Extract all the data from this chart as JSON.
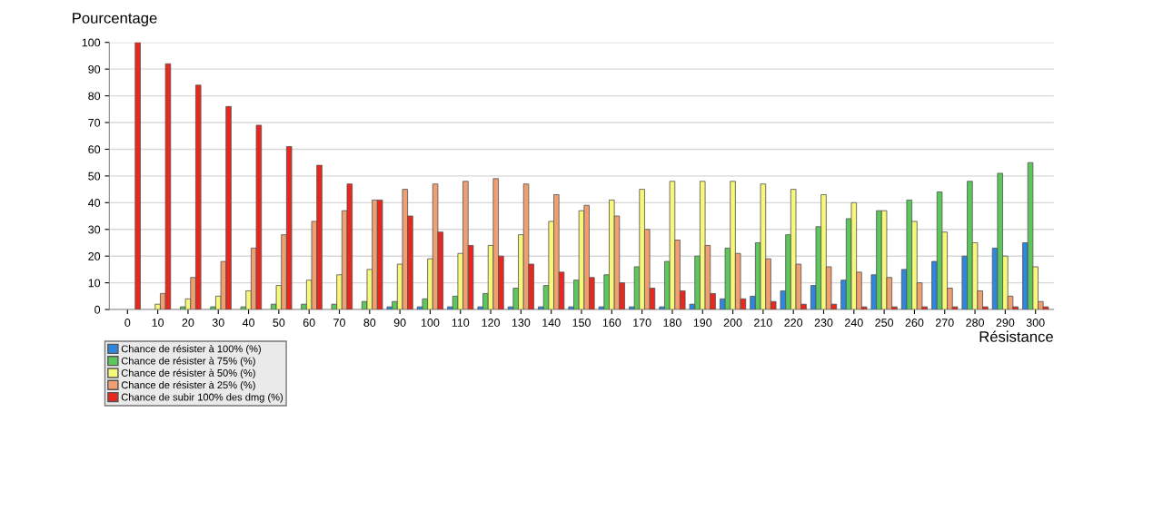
{
  "chart_data": {
    "type": "bar",
    "ylabel": "Pourcentage",
    "xlabel": "Résistance",
    "categories": [
      "0",
      "10",
      "20",
      "30",
      "40",
      "50",
      "60",
      "70",
      "80",
      "90",
      "100",
      "110",
      "120",
      "130",
      "140",
      "150",
      "160",
      "170",
      "180",
      "190",
      "200",
      "210",
      "220",
      "230",
      "240",
      "250",
      "260",
      "270",
      "280",
      "290",
      "300"
    ],
    "series": [
      {
        "name": "Chance de résister à 100% (%)",
        "color": "#2e86de",
        "values": [
          0,
          0,
          0,
          0,
          0,
          0,
          0,
          0,
          0,
          1,
          1,
          1,
          1,
          1,
          1,
          1,
          1,
          1,
          1,
          2,
          4,
          5,
          7,
          9,
          11,
          13,
          15,
          18,
          20,
          23,
          25
        ]
      },
      {
        "name": "Chance de résister à 75% (%)",
        "color": "#5cc85c",
        "values": [
          0,
          0,
          1,
          1,
          1,
          2,
          2,
          2,
          3,
          3,
          4,
          5,
          6,
          8,
          9,
          11,
          13,
          16,
          18,
          20,
          23,
          25,
          28,
          31,
          34,
          37,
          41,
          44,
          48,
          51,
          55
        ]
      },
      {
        "name": "Chance de résister à 50% (%)",
        "color": "#f7f77a",
        "values": [
          0,
          2,
          4,
          5,
          7,
          9,
          11,
          13,
          15,
          17,
          19,
          21,
          24,
          28,
          33,
          37,
          41,
          45,
          48,
          48,
          48,
          47,
          45,
          43,
          40,
          37,
          33,
          29,
          25,
          20,
          16
        ]
      },
      {
        "name": "Chance de résister à 25% (%)",
        "color": "#f0a070",
        "values": [
          0,
          6,
          12,
          18,
          23,
          28,
          33,
          37,
          41,
          45,
          47,
          48,
          49,
          47,
          43,
          39,
          35,
          30,
          26,
          24,
          21,
          19,
          17,
          16,
          14,
          12,
          10,
          8,
          7,
          5,
          3
        ]
      },
      {
        "name": "Chance de subir 100% des dmg (%)",
        "color": "#e8281e",
        "values": [
          100,
          92,
          84,
          76,
          69,
          61,
          54,
          47,
          41,
          35,
          29,
          24,
          20,
          17,
          14,
          12,
          10,
          8,
          7,
          6,
          4,
          3,
          2,
          2,
          1,
          1,
          1,
          1,
          1,
          1,
          1
        ]
      }
    ],
    "ylim": [
      0,
      100
    ],
    "yticks": [
      0,
      10,
      20,
      30,
      40,
      50,
      60,
      70,
      80,
      90,
      100
    ],
    "grid": "y",
    "legend": "bottom left"
  }
}
